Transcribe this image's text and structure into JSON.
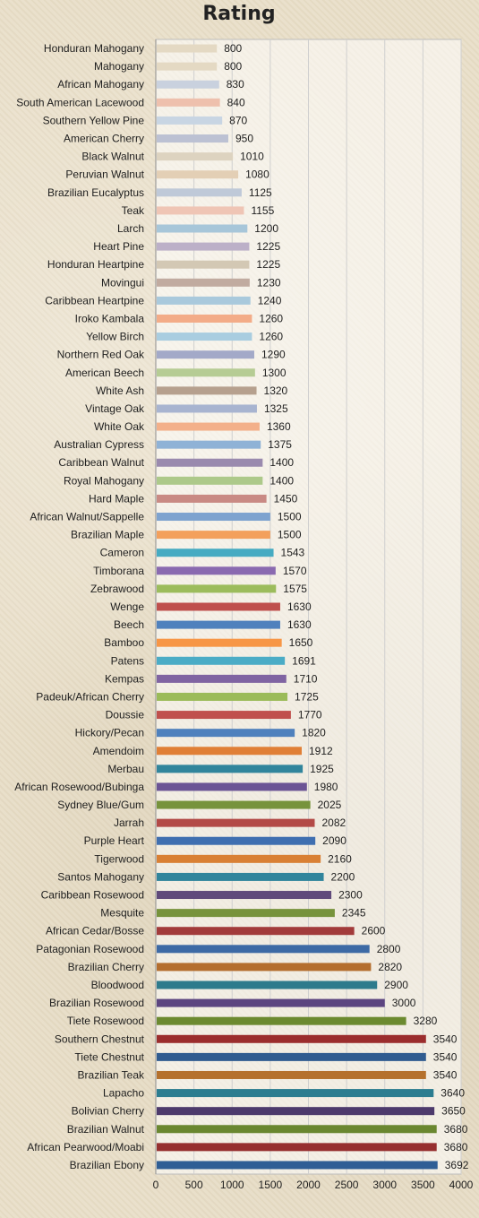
{
  "chart_data": {
    "type": "bar",
    "orientation": "horizontal",
    "title": "Rating",
    "xlim": [
      0,
      4000
    ],
    "xticks": [
      0,
      500,
      1000,
      1500,
      2000,
      2500,
      3000,
      3500,
      4000
    ],
    "grid": true,
    "categories": [
      "Honduran Mahogany",
      "Mahogany",
      "African Mahogany",
      "South American Lacewood",
      "Southern Yellow Pine",
      "American Cherry",
      "Black Walnut",
      "Peruvian Walnut",
      "Brazilian Eucalyptus",
      "Teak",
      "Larch",
      "Heart Pine",
      "Honduran Heartpine",
      "Movingui",
      "Caribbean Heartpine",
      "Iroko Kambala",
      "Yellow Birch",
      "Northern Red Oak",
      "American Beech",
      "White Ash",
      "Vintage Oak",
      "White Oak",
      "Australian Cypress",
      "Caribbean Walnut",
      "Royal Mahogany",
      "Hard Maple",
      "African Walnut/Sappelle",
      "Brazilian Maple",
      "Cameron",
      "Timborana",
      "Zebrawood",
      "Wenge",
      "Beech",
      "Bamboo",
      "Patens",
      "Kempas",
      "Padeuk/African Cherry",
      "Doussie",
      "Hickory/Pecan",
      "Amendoim",
      "Merbau",
      "African Rosewood/Bubinga",
      "Sydney Blue/Gum",
      "Jarrah",
      "Purple Heart",
      "Tigerwood",
      "Santos Mahogany",
      "Caribbean Rosewood",
      "Mesquite",
      "African Cedar/Bosse",
      "Patagonian Rosewood",
      "Brazilian Cherry",
      "Bloodwood",
      "Brazilian Rosewood",
      "Tiete Rosewood",
      "Southern Chestnut",
      "Tiete Chestnut",
      "Brazilian Teak",
      "Lapacho",
      "Bolivian Cherry",
      "Brazilian Walnut",
      "African Pearwood/Moabi",
      "Brazilian Ebony"
    ],
    "values": [
      800,
      800,
      830,
      840,
      870,
      950,
      1010,
      1080,
      1125,
      1155,
      1200,
      1225,
      1225,
      1230,
      1240,
      1260,
      1260,
      1290,
      1300,
      1320,
      1325,
      1360,
      1375,
      1400,
      1400,
      1450,
      1500,
      1500,
      1543,
      1570,
      1575,
      1630,
      1630,
      1650,
      1691,
      1710,
      1725,
      1770,
      1820,
      1912,
      1925,
      1980,
      2025,
      2082,
      2090,
      2160,
      2200,
      2300,
      2345,
      2600,
      2800,
      2820,
      2900,
      3000,
      3280,
      3540,
      3540,
      3540,
      3640,
      3650,
      3680,
      3680,
      3692
    ],
    "colors": [
      "#e4d9c3",
      "#e4d9c3",
      "#c9d1de",
      "#eec0ad",
      "#c8d5e3",
      "#bcc1d3",
      "#ddd3c0",
      "#e3cfb5",
      "#bfc9d8",
      "#efc5b5",
      "#a7c6d9",
      "#bcb0c8",
      "#d3c8b4",
      "#c1aba0",
      "#a9c9dc",
      "#f3ac88",
      "#a9cde0",
      "#a3a9c8",
      "#b6cc94",
      "#b6a08e",
      "#a8b4d0",
      "#f3b08a",
      "#8fb2d6",
      "#9a8aae",
      "#adc98a",
      "#c98a84",
      "#7ea3cf",
      "#f3a05c",
      "#46abc2",
      "#8a6ab0",
      "#9cbc5c",
      "#bf4f4c",
      "#4f81bd",
      "#f79646",
      "#4bacc6",
      "#8064a2",
      "#9bbb59",
      "#c0504d",
      "#4f81bd",
      "#e07f36",
      "#31859c",
      "#6b5495",
      "#77933c",
      "#b34a47",
      "#3f6fb0",
      "#d98034",
      "#31859c",
      "#604a7b",
      "#77933c",
      "#a23b3b",
      "#3d6aa5",
      "#b46e2e",
      "#2e7b8c",
      "#5c4580",
      "#6c8a30",
      "#9b2d2d",
      "#305c90",
      "#b5712d",
      "#2c7d90",
      "#4d3a6c",
      "#6a8730",
      "#962f2f",
      "#2f5e95"
    ]
  }
}
